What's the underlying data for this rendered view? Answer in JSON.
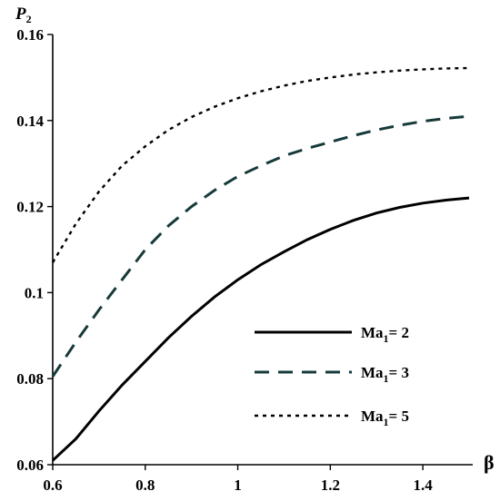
{
  "chart_data": {
    "type": "line",
    "title": "",
    "xlabel": "β",
    "ylabel": {
      "main": "P",
      "sub": "2"
    },
    "xlim": [
      0.6,
      1.5
    ],
    "ylim": [
      0.06,
      0.16
    ],
    "xticks": [
      "0.6",
      "0.8",
      "1",
      "1.2",
      "1.4"
    ],
    "xtick_values": [
      0.6,
      0.8,
      1.0,
      1.2,
      1.4
    ],
    "yticks": [
      "0.06",
      "0.08",
      "0.1",
      "0.12",
      "0.14",
      "0.16"
    ],
    "ytick_values": [
      0.06,
      0.08,
      0.1,
      0.12,
      0.14,
      0.16
    ],
    "grid": false,
    "legend_position": "lower-right",
    "x": [
      0.6,
      0.65,
      0.7,
      0.75,
      0.8,
      0.85,
      0.9,
      0.95,
      1.0,
      1.05,
      1.1,
      1.15,
      1.2,
      1.25,
      1.3,
      1.35,
      1.4,
      1.45,
      1.5
    ],
    "series": [
      {
        "name_main": "Ma",
        "name_sub": "1",
        "name_tail": "= 2",
        "style": "solid",
        "color": "#000000",
        "values": [
          0.061,
          0.066,
          0.0725,
          0.0785,
          0.084,
          0.0895,
          0.0945,
          0.099,
          0.103,
          0.1065,
          0.1095,
          0.1123,
          0.1147,
          0.1168,
          0.1185,
          0.1198,
          0.1208,
          0.1215,
          0.122
        ]
      },
      {
        "name_main": "Ma",
        "name_sub": "1",
        "name_tail": "= 3",
        "style": "dashed",
        "color": "#163a3a",
        "values": [
          0.0805,
          0.0885,
          0.096,
          0.103,
          0.11,
          0.1155,
          0.12,
          0.1238,
          0.127,
          0.1295,
          0.1318,
          0.1335,
          0.135,
          0.1365,
          0.1378,
          0.1389,
          0.1398,
          0.1405,
          0.141
        ]
      },
      {
        "name_main": "Ma",
        "name_sub": "1",
        "name_tail": "= 5",
        "style": "dotted",
        "color": "#000000",
        "values": [
          0.107,
          0.116,
          0.1235,
          0.1295,
          0.134,
          0.1378,
          0.1408,
          0.1432,
          0.1452,
          0.1468,
          0.1481,
          0.1492,
          0.15,
          0.1507,
          0.1512,
          0.1516,
          0.1519,
          0.1521,
          0.1522
        ]
      }
    ]
  }
}
